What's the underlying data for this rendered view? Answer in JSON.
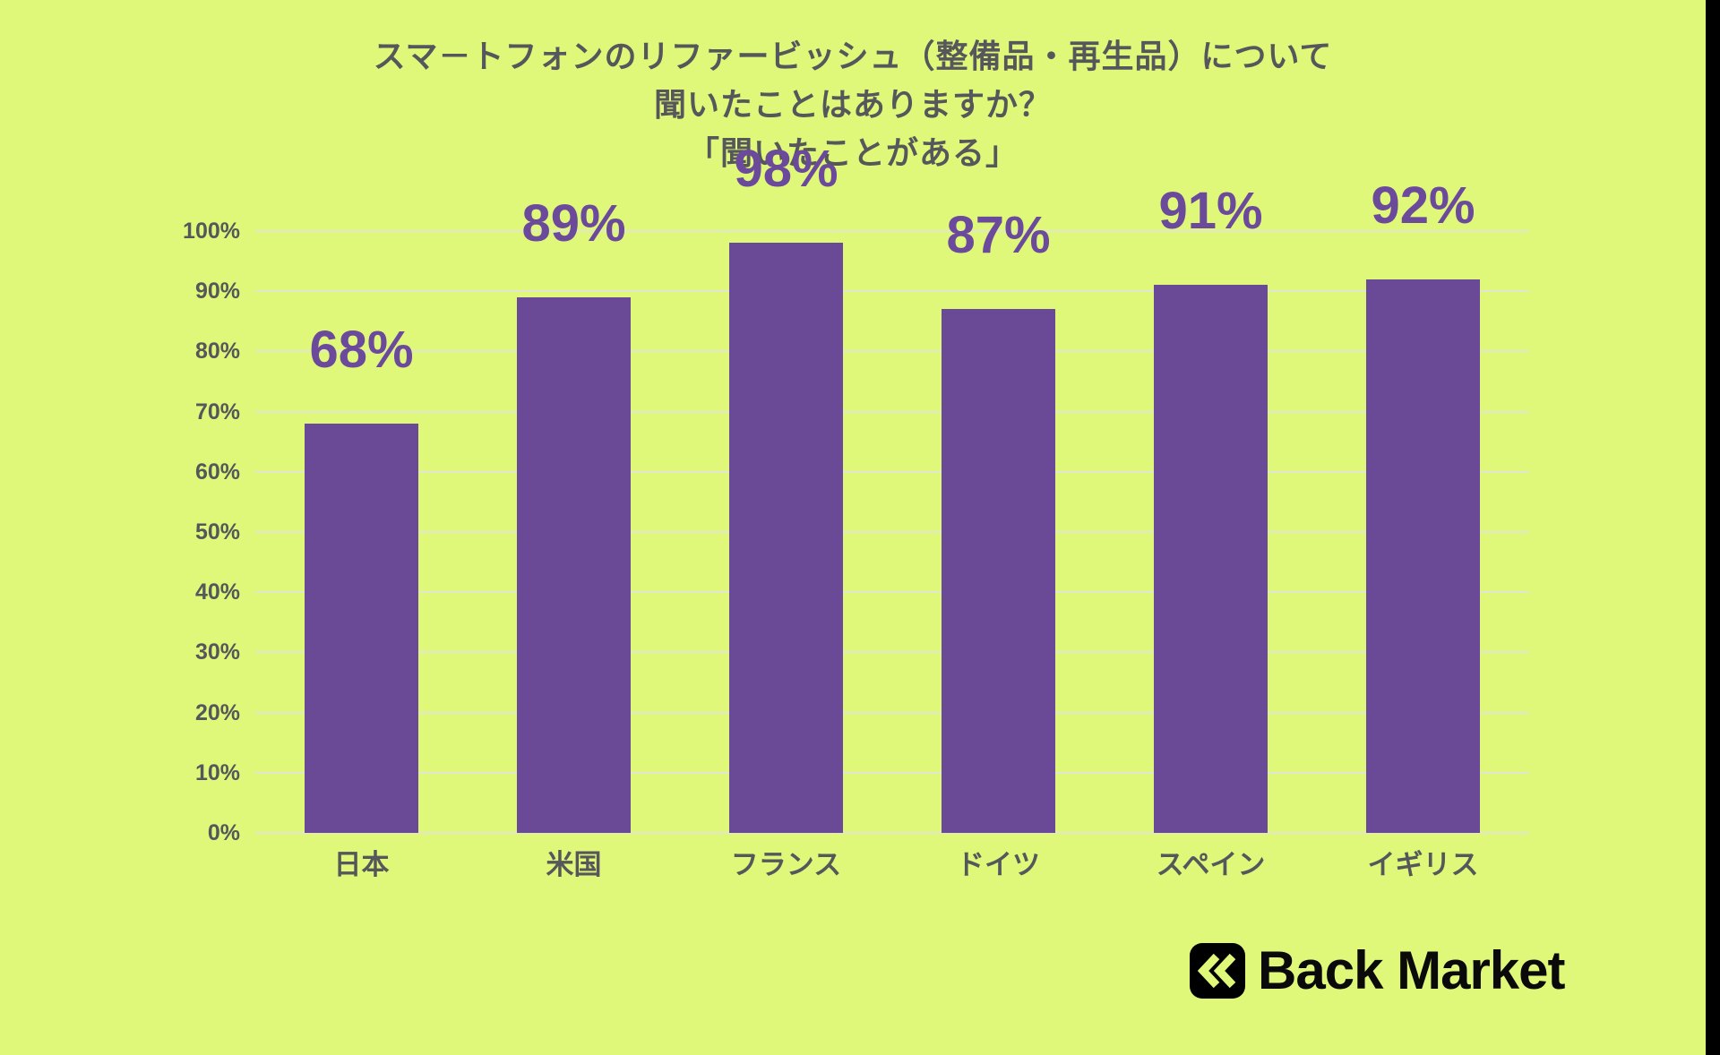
{
  "colors": {
    "background": "#E0F87A",
    "bar": "#6A4A96",
    "value_label": "#6B4A9C",
    "text": "#56575B",
    "gridline": "#E2E6D0",
    "logo_black": "#000000"
  },
  "title": {
    "line1": "スマ－トフォンのリファービッシュ（整備品・再生品）について",
    "line2": "聞いたことはありますか？",
    "line3": "「聞いたことがある」"
  },
  "chart_data": {
    "type": "bar",
    "title": "スマ－トフォンのリファービッシュ（整備品・再生品）について 聞いたことはありますか？「聞いたことがある」",
    "categories": [
      "日本",
      "米国",
      "フランス",
      "ドイツ",
      "スペイン",
      "イギリス"
    ],
    "values": [
      68,
      89,
      98,
      87,
      91,
      92
    ],
    "value_labels": [
      "68%",
      "89%",
      "98%",
      "87%",
      "91%",
      "92%"
    ],
    "xlabel": "",
    "ylabel": "",
    "ylim": [
      0,
      100
    ],
    "ytick_step": 10,
    "ytick_labels": [
      "0%",
      "10%",
      "20%",
      "30%",
      "40%",
      "50%",
      "60%",
      "70%",
      "80%",
      "90%",
      "100%"
    ],
    "grid": true,
    "legend_position": "none",
    "bar_color": "#6A4A96"
  },
  "footer": {
    "brand": "Back Market",
    "logo_icon": "double-chevron-left"
  }
}
